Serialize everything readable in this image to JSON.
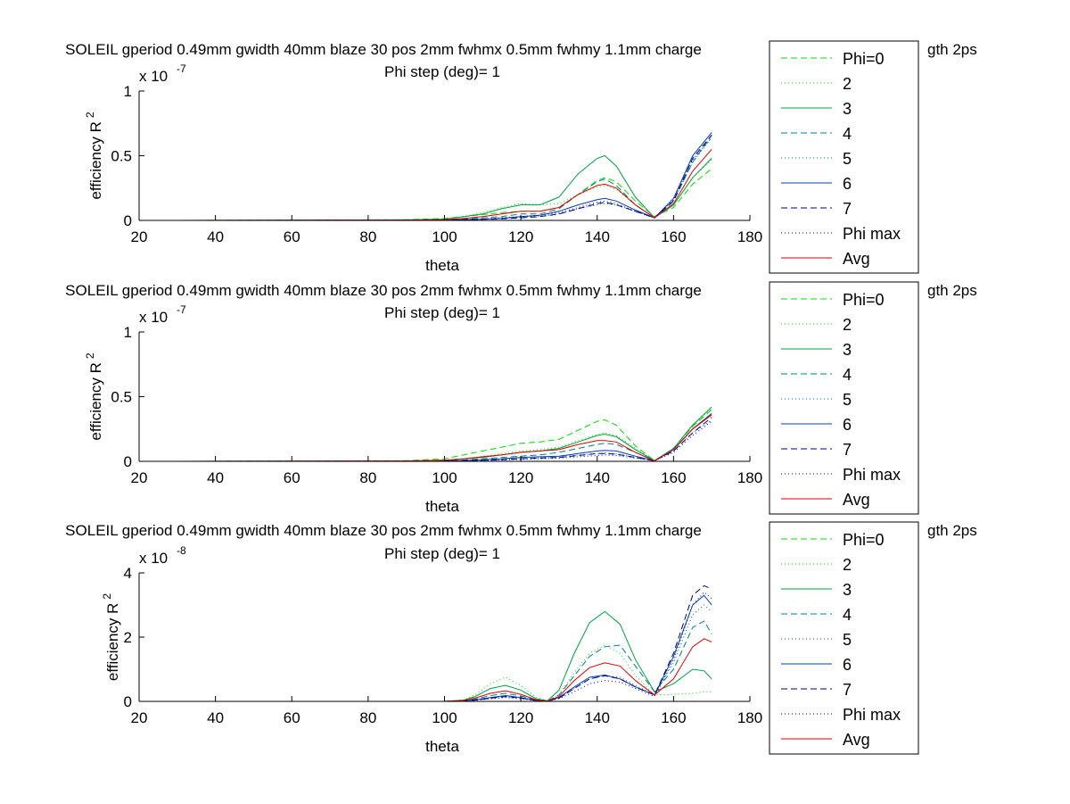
{
  "chart_data": [
    {
      "type": "line",
      "title": "SOLEIL gperiod 0.49mm gwidth 40mm blaze 30 pos 2mm fwhmx 0.5mm fwhmy 1.1mm charge",
      "title_tail": "gth 2ps",
      "subtitle": "Phi step (deg)= 1",
      "xlabel": "theta",
      "ylabel": "efficiency R",
      "ylabel_sup": "2",
      "exponent": "x 10",
      "exponent_power": "-7",
      "xlim": [
        20,
        180
      ],
      "ylim": [
        0,
        1
      ],
      "xticks": [
        "20",
        "40",
        "60",
        "80",
        "100",
        "120",
        "140",
        "160",
        "180"
      ],
      "yticks": [
        "0",
        "0.5",
        "1"
      ],
      "ytick_values": [
        0,
        0.5,
        1
      ],
      "grid": false,
      "legend_position": "right",
      "x": [
        30,
        90,
        100,
        105,
        110,
        115,
        120,
        125,
        130,
        135,
        140,
        142,
        145,
        150,
        155,
        160,
        165,
        170
      ],
      "series": [
        {
          "name": "Phi=0",
          "color": "#00e000",
          "dash": "7,4",
          "values": [
            0,
            0.005,
            0.015,
            0.03,
            0.045,
            0.06,
            0.07,
            0.07,
            0.1,
            0.2,
            0.31,
            0.33,
            0.3,
            0.15,
            0.03,
            0.1,
            0.28,
            0.4
          ]
        },
        {
          "name": "2",
          "color": "#00e000",
          "dash": "1,3",
          "values": [
            0,
            0.003,
            0.01,
            0.03,
            0.06,
            0.1,
            0.13,
            0.12,
            0.13,
            0.2,
            0.26,
            0.27,
            0.24,
            0.12,
            0.02,
            0.12,
            0.33,
            0.47
          ]
        },
        {
          "name": "3",
          "color": "#00a040",
          "dash": "",
          "values": [
            0,
            0.004,
            0.01,
            0.03,
            0.05,
            0.09,
            0.12,
            0.12,
            0.18,
            0.36,
            0.48,
            0.5,
            0.42,
            0.18,
            0.02,
            0.12,
            0.33,
            0.48
          ]
        },
        {
          "name": "4",
          "color": "#008080",
          "dash": "7,4",
          "values": [
            0,
            0.002,
            0.005,
            0.01,
            0.02,
            0.03,
            0.05,
            0.05,
            0.09,
            0.2,
            0.3,
            0.32,
            0.27,
            0.12,
            0.02,
            0.15,
            0.45,
            0.66
          ]
        },
        {
          "name": "5",
          "color": "#0060a0",
          "dash": "1,3",
          "values": [
            0,
            0.001,
            0.003,
            0.006,
            0.01,
            0.015,
            0.025,
            0.03,
            0.05,
            0.09,
            0.12,
            0.13,
            0.12,
            0.07,
            0.02,
            0.15,
            0.45,
            0.64
          ]
        },
        {
          "name": "6",
          "color": "#0040b0",
          "dash": "",
          "values": [
            0,
            0.001,
            0.003,
            0.006,
            0.01,
            0.015,
            0.03,
            0.04,
            0.07,
            0.12,
            0.16,
            0.17,
            0.15,
            0.08,
            0.02,
            0.17,
            0.5,
            0.68
          ]
        },
        {
          "name": "7",
          "color": "#000080",
          "dash": "7,4",
          "values": [
            0,
            0.001,
            0.002,
            0.004,
            0.008,
            0.012,
            0.02,
            0.03,
            0.05,
            0.09,
            0.13,
            0.14,
            0.12,
            0.07,
            0.02,
            0.15,
            0.48,
            0.66
          ]
        },
        {
          "name": "Phi max",
          "color": "#000080",
          "dash": "1,3",
          "values": [
            0,
            0.001,
            0.003,
            0.006,
            0.01,
            0.02,
            0.03,
            0.04,
            0.06,
            0.1,
            0.14,
            0.15,
            0.13,
            0.07,
            0.02,
            0.16,
            0.47,
            0.64
          ]
        },
        {
          "name": "Avg",
          "color": "#e00000",
          "dash": "",
          "values": [
            0,
            0.002,
            0.006,
            0.015,
            0.03,
            0.05,
            0.07,
            0.07,
            0.1,
            0.2,
            0.27,
            0.28,
            0.25,
            0.12,
            0.02,
            0.13,
            0.38,
            0.55
          ]
        }
      ]
    },
    {
      "type": "line",
      "title": "SOLEIL gperiod 0.49mm gwidth 40mm blaze 30 pos 2mm fwhmx 0.5mm fwhmy 1.1mm charge",
      "title_tail": "gth 2ps",
      "subtitle": "Phi step (deg)= 1",
      "xlabel": "theta",
      "ylabel": "efficiency R",
      "ylabel_sup": "2",
      "exponent": "x 10",
      "exponent_power": "-7",
      "xlim": [
        20,
        180
      ],
      "ylim": [
        0,
        1
      ],
      "xticks": [
        "20",
        "40",
        "60",
        "80",
        "100",
        "120",
        "140",
        "160",
        "180"
      ],
      "yticks": [
        "0",
        "0.5",
        "1"
      ],
      "ytick_values": [
        0,
        0.5,
        1
      ],
      "grid": false,
      "legend_position": "right",
      "x": [
        30,
        90,
        100,
        105,
        110,
        115,
        120,
        125,
        130,
        135,
        140,
        142,
        145,
        150,
        155,
        160,
        165,
        170
      ],
      "series": [
        {
          "name": "Phi=0",
          "color": "#00e000",
          "dash": "7,4",
          "values": [
            0,
            0.005,
            0.02,
            0.05,
            0.08,
            0.11,
            0.14,
            0.15,
            0.17,
            0.24,
            0.31,
            0.32,
            0.28,
            0.12,
            0.005,
            0.1,
            0.27,
            0.4
          ]
        },
        {
          "name": "2",
          "color": "#00e000",
          "dash": "1,3",
          "values": [
            0,
            0.003,
            0.01,
            0.02,
            0.04,
            0.06,
            0.08,
            0.09,
            0.11,
            0.16,
            0.21,
            0.22,
            0.2,
            0.1,
            0.005,
            0.1,
            0.28,
            0.41
          ]
        },
        {
          "name": "3",
          "color": "#00a040",
          "dash": "",
          "values": [
            0,
            0.002,
            0.008,
            0.02,
            0.03,
            0.05,
            0.07,
            0.08,
            0.1,
            0.15,
            0.2,
            0.21,
            0.19,
            0.09,
            0.005,
            0.1,
            0.28,
            0.42
          ]
        },
        {
          "name": "4",
          "color": "#008080",
          "dash": "7,4",
          "values": [
            0,
            0.002,
            0.005,
            0.01,
            0.02,
            0.03,
            0.04,
            0.05,
            0.07,
            0.1,
            0.13,
            0.14,
            0.13,
            0.07,
            0.005,
            0.09,
            0.25,
            0.37
          ]
        },
        {
          "name": "5",
          "color": "#0060a0",
          "dash": "1,3",
          "values": [
            0,
            0.001,
            0.002,
            0.005,
            0.01,
            0.015,
            0.02,
            0.03,
            0.035,
            0.05,
            0.06,
            0.065,
            0.06,
            0.03,
            0.005,
            0.08,
            0.22,
            0.32
          ]
        },
        {
          "name": "6",
          "color": "#0040b0",
          "dash": "",
          "values": [
            0,
            0.001,
            0.003,
            0.007,
            0.012,
            0.02,
            0.03,
            0.035,
            0.04,
            0.06,
            0.08,
            0.085,
            0.08,
            0.04,
            0.005,
            0.09,
            0.25,
            0.37
          ]
        },
        {
          "name": "7",
          "color": "#000080",
          "dash": "7,4",
          "values": [
            0,
            0.001,
            0.002,
            0.004,
            0.008,
            0.012,
            0.02,
            0.025,
            0.03,
            0.045,
            0.06,
            0.06,
            0.055,
            0.03,
            0.005,
            0.08,
            0.22,
            0.34
          ]
        },
        {
          "name": "Phi max",
          "color": "#000080",
          "dash": "1,3",
          "values": [
            0,
            0.001,
            0.002,
            0.004,
            0.007,
            0.01,
            0.015,
            0.02,
            0.025,
            0.035,
            0.045,
            0.05,
            0.045,
            0.025,
            0.005,
            0.07,
            0.2,
            0.31
          ]
        },
        {
          "name": "Avg",
          "color": "#e00000",
          "dash": "",
          "values": [
            0,
            0.003,
            0.008,
            0.02,
            0.035,
            0.05,
            0.07,
            0.08,
            0.09,
            0.13,
            0.16,
            0.16,
            0.15,
            0.07,
            0.003,
            0.09,
            0.25,
            0.36
          ]
        }
      ]
    },
    {
      "type": "line",
      "title": "SOLEIL gperiod 0.49mm gwidth 40mm blaze 30 pos 2mm fwhmx 0.5mm fwhmy 1.1mm charge",
      "title_tail": "gth 2ps",
      "subtitle": "Phi step (deg)= 1",
      "xlabel": "theta",
      "ylabel": "efficiency R",
      "ylabel_sup": "2",
      "exponent": "x 10",
      "exponent_power": "-8",
      "xlim": [
        20,
        180
      ],
      "ylim": [
        0,
        4
      ],
      "xticks": [
        "20",
        "40",
        "60",
        "80",
        "100",
        "120",
        "140",
        "160",
        "180"
      ],
      "yticks": [
        "0",
        "2",
        "4"
      ],
      "ytick_values": [
        0,
        2,
        4
      ],
      "grid": false,
      "legend_position": "right",
      "x": [
        30,
        100,
        105,
        108,
        112,
        116,
        120,
        124,
        127,
        130,
        134,
        138,
        142,
        146,
        150,
        155,
        160,
        165,
        168,
        170
      ],
      "series": [
        {
          "name": "Phi=0",
          "color": "#00e000",
          "dash": "7,4",
          "values": [
            0,
            0,
            0,
            0,
            0,
            0,
            0,
            0,
            0,
            0,
            0,
            0,
            0,
            0,
            0,
            0,
            0,
            0,
            0,
            0
          ]
        },
        {
          "name": "2",
          "color": "#00e000",
          "dash": "1,3",
          "values": [
            0,
            0,
            0.05,
            0.2,
            0.55,
            0.75,
            0.5,
            0.12,
            0.02,
            0.2,
            0.9,
            1.5,
            1.75,
            1.5,
            0.8,
            0.2,
            0.22,
            0.25,
            0.3,
            0.3
          ]
        },
        {
          "name": "3",
          "color": "#00a040",
          "dash": "",
          "values": [
            0,
            0,
            0.04,
            0.15,
            0.4,
            0.5,
            0.35,
            0.08,
            0.02,
            0.35,
            1.5,
            2.45,
            2.8,
            2.4,
            1.3,
            0.3,
            0.55,
            1.0,
            0.95,
            0.7
          ]
        },
        {
          "name": "4",
          "color": "#008080",
          "dash": "7,4",
          "values": [
            0,
            0,
            0.02,
            0.07,
            0.18,
            0.25,
            0.17,
            0.04,
            0.01,
            0.2,
            0.8,
            1.4,
            1.7,
            1.75,
            1.1,
            0.3,
            1.0,
            2.3,
            2.5,
            2.1
          ]
        },
        {
          "name": "5",
          "color": "#0060a0",
          "dash": "1,3",
          "values": [
            0,
            0,
            0.01,
            0.04,
            0.1,
            0.15,
            0.1,
            0.03,
            0.01,
            0.1,
            0.4,
            0.7,
            0.8,
            0.75,
            0.5,
            0.2,
            1.2,
            2.7,
            3.0,
            2.8
          ]
        },
        {
          "name": "6",
          "color": "#0040b0",
          "dash": "",
          "values": [
            0,
            0,
            0.01,
            0.05,
            0.12,
            0.18,
            0.12,
            0.03,
            0.01,
            0.12,
            0.45,
            0.75,
            0.82,
            0.7,
            0.45,
            0.2,
            1.4,
            3.0,
            3.3,
            3.0
          ]
        },
        {
          "name": "7",
          "color": "#000080",
          "dash": "7,4",
          "values": [
            0,
            0,
            0.01,
            0.04,
            0.1,
            0.15,
            0.1,
            0.03,
            0.01,
            0.1,
            0.4,
            0.7,
            0.8,
            0.7,
            0.45,
            0.2,
            1.5,
            3.3,
            3.6,
            3.5
          ]
        },
        {
          "name": "Phi max",
          "color": "#000080",
          "dash": "1,3",
          "values": [
            0,
            0,
            0.01,
            0.03,
            0.08,
            0.12,
            0.08,
            0.02,
            0.01,
            0.08,
            0.3,
            0.55,
            0.65,
            0.6,
            0.4,
            0.15,
            1.3,
            3.0,
            3.4,
            3.2
          ]
        },
        {
          "name": "Avg",
          "color": "#e00000",
          "dash": "",
          "values": [
            0,
            0,
            0.03,
            0.1,
            0.25,
            0.33,
            0.22,
            0.05,
            0.01,
            0.15,
            0.65,
            1.05,
            1.2,
            1.1,
            0.65,
            0.2,
            0.7,
            1.7,
            1.95,
            1.85
          ]
        }
      ]
    }
  ]
}
